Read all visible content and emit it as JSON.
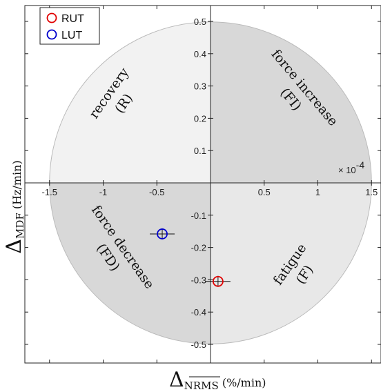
{
  "chart_data": {
    "type": "scatter",
    "subtype": "quadrant-circle",
    "xlim": [
      -1.5,
      1.5
    ],
    "ylim": [
      -0.5,
      0.5
    ],
    "x_scale_note": "× 10-4",
    "x_scale_parts": {
      "base": "× 10",
      "exponent": "-4"
    },
    "xticks": [
      -1.5,
      -1,
      -0.5,
      0.5,
      1,
      1.5
    ],
    "xtick_labels": [
      "-1.5",
      "-1",
      "-0.5",
      "0.5",
      "1",
      "1.5"
    ],
    "yticks": [
      0.5,
      0.4,
      0.3,
      0.2,
      0.1,
      -0.1,
      -0.2,
      -0.3,
      -0.4,
      -0.5
    ],
    "ytick_labels": [
      "0.5",
      "0.4",
      "0.3",
      "0.2",
      "0.1",
      "-0.1",
      "-0.2",
      "-0.3",
      "-0.4",
      "-0.5"
    ],
    "xlabel": {
      "delta": "Δ",
      "sub": "NRMS",
      "units": "(%/min)"
    },
    "ylabel": {
      "delta": "Δ",
      "sub": "MDF",
      "units": "(Hz/min)"
    },
    "quadrants": [
      {
        "key": "R",
        "label": "recovery",
        "abbr": "(R)",
        "color": "#f2f2f2"
      },
      {
        "key": "FI",
        "label": "force increase",
        "abbr": "(FI)",
        "color": "#d8d8d8"
      },
      {
        "key": "FD",
        "label": "force decrease",
        "abbr": "(FD)",
        "color": "#d8d8d8"
      },
      {
        "key": "F",
        "label": "fatigue",
        "abbr": "(F)",
        "color": "#e8e8e8"
      }
    ],
    "series": [
      {
        "name": "RUT",
        "color": "#e00000",
        "x": 0.07,
        "y": -0.305
      },
      {
        "name": "LUT",
        "color": "#0000cc",
        "x": -0.45,
        "y": -0.158
      }
    ],
    "legend": {
      "position": "top-left"
    },
    "grid": false
  }
}
